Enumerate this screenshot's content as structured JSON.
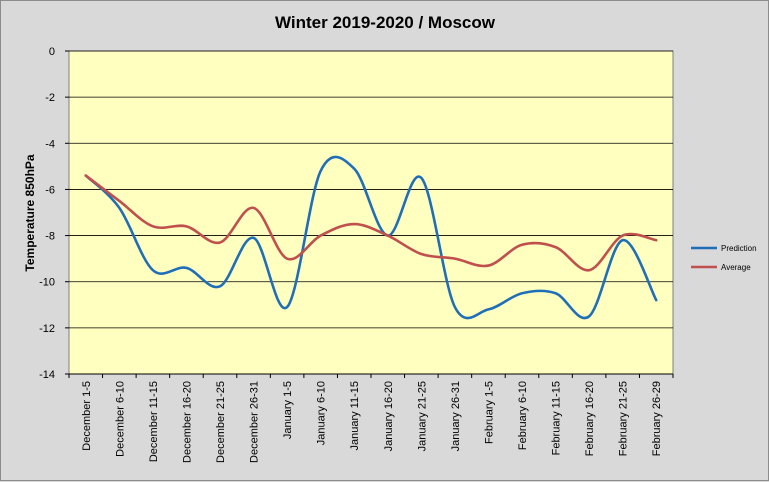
{
  "chart_data": {
    "type": "line",
    "title": "Winter 2019-2020 / Moscow",
    "xlabel": "",
    "ylabel": "Temperature 850hPa",
    "ylim": [
      -14,
      0
    ],
    "yticks": [
      0,
      -2,
      -4,
      -6,
      -8,
      -10,
      -12,
      -14
    ],
    "grid": true,
    "legend_position": "right",
    "categories": [
      "December 1-5",
      "December 6-10",
      "December 11-15",
      "December 16-20",
      "December 21-25",
      "December 26-31",
      "January 1-5",
      "January 6-10",
      "January 11-15",
      "January 16-20",
      "January 21-25",
      "January 26-31",
      "February 1-5",
      "February 6-10",
      "February 11-15",
      "February 16-20",
      "February 21-25",
      "February 26-29"
    ],
    "series": [
      {
        "name": "Prediction",
        "color": "#1f6fb8",
        "values": [
          -5.4,
          -6.8,
          -9.5,
          -9.4,
          -10.2,
          -8.1,
          -11.1,
          -5.2,
          -5.1,
          -8.0,
          -5.5,
          -11.1,
          -11.2,
          -10.5,
          -10.5,
          -11.5,
          -8.2,
          -10.8
        ]
      },
      {
        "name": "Average",
        "color": "#c0504d",
        "values": [
          -5.4,
          -6.5,
          -7.6,
          -7.6,
          -8.3,
          -6.8,
          -9.0,
          -8.0,
          -7.5,
          -8.0,
          -8.8,
          -9.0,
          -9.3,
          -8.4,
          -8.5,
          -9.5,
          -8.0,
          -8.2
        ]
      }
    ],
    "colors": {
      "plot_background": "#ffffc0",
      "chart_background": "#d9d9d9",
      "gridline": "#000000"
    }
  }
}
